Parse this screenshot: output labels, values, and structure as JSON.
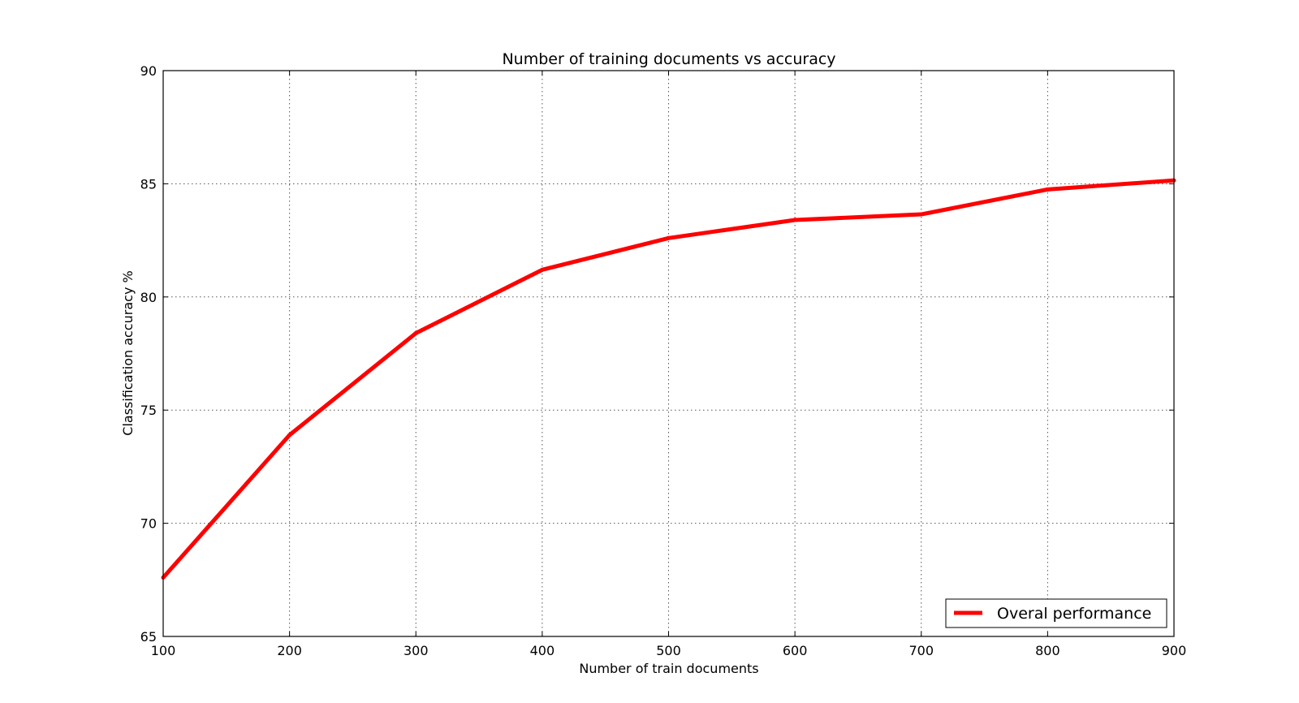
{
  "chart_data": {
    "type": "line",
    "title": "Number of training documents vs accuracy",
    "xlabel": "Number of train documents",
    "ylabel": "Classification accuracy %",
    "x": [
      100,
      200,
      300,
      400,
      500,
      600,
      700,
      800,
      900
    ],
    "series": [
      {
        "name": "Overal performance",
        "color": "#ff0000",
        "values": [
          67.6,
          73.9,
          78.4,
          81.2,
          82.6,
          83.4,
          83.65,
          84.75,
          85.15
        ]
      }
    ],
    "xlim": [
      100,
      900
    ],
    "ylim": [
      65,
      90
    ],
    "xticks": [
      "100",
      "200",
      "300",
      "400",
      "500",
      "600",
      "700",
      "800",
      "900"
    ],
    "yticks": [
      "65",
      "70",
      "75",
      "80",
      "85",
      "90"
    ],
    "grid": true,
    "legend_position": "lower-right"
  }
}
